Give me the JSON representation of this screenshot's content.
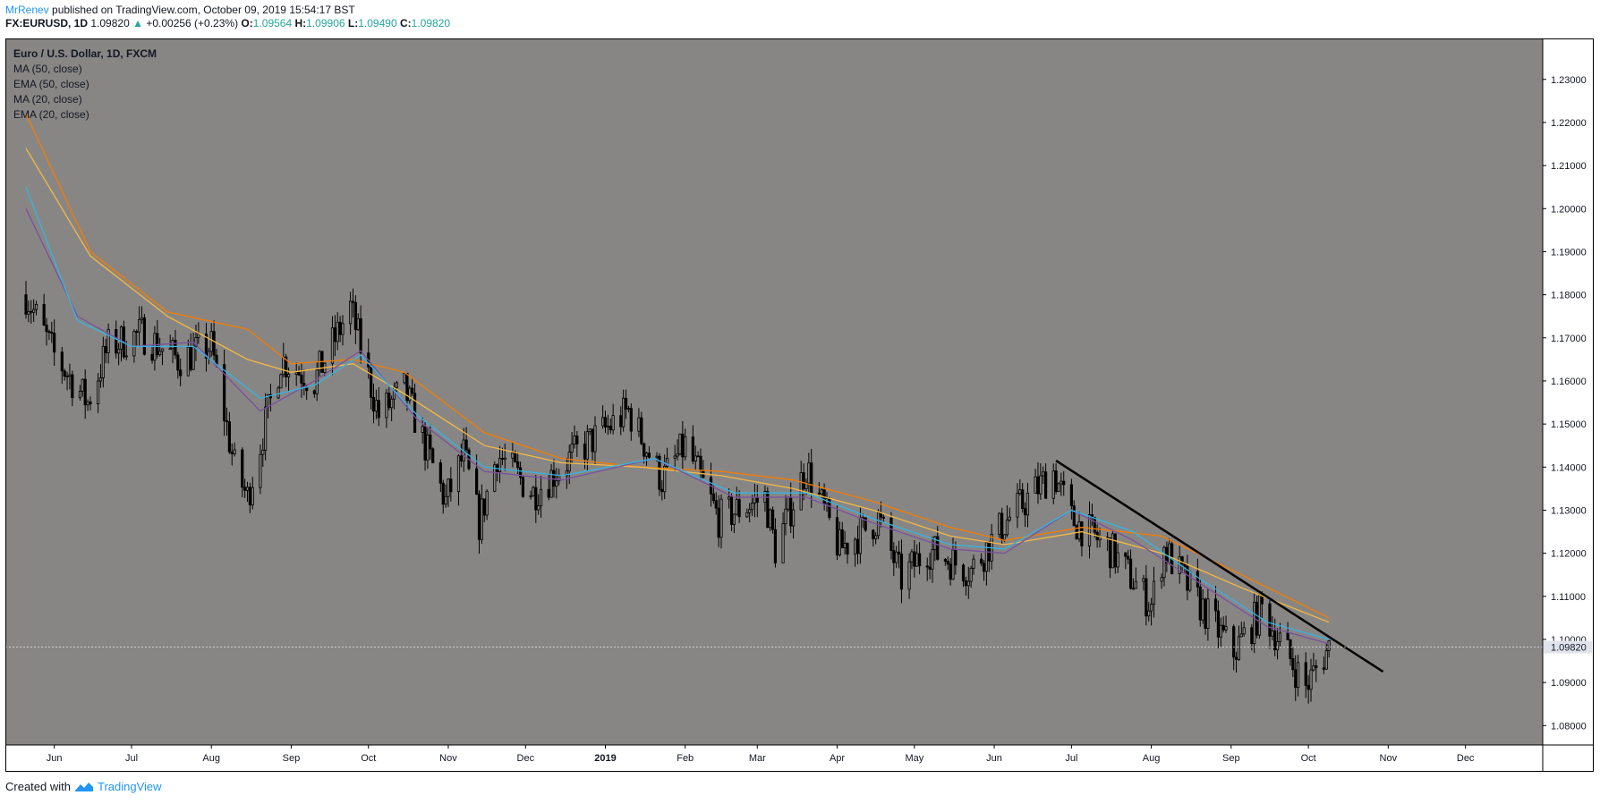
{
  "header": {
    "author": "MrRenev",
    "published": "published on TradingView.com, October 09, 2019 15:54:17 BST",
    "symbol": "FX:EURUSD, 1D",
    "last": "1.09820",
    "change": "+0.00256 (+0.23%)",
    "o_label": "O:",
    "o": "1.09564",
    "h_label": "H:",
    "h": "1.09906",
    "l_label": "L:",
    "l": "1.09490",
    "c_label": "C:",
    "c": "1.09820"
  },
  "legend": {
    "title": "Euro / U.S. Dollar, 1D, FXCM",
    "items": [
      "MA (50, close)",
      "EMA (50, close)",
      "MA (20, close)",
      "EMA (20, close)"
    ]
  },
  "footer": {
    "created_with": "Created with",
    "brand": "TradingView"
  },
  "colors": {
    "background": "#888684",
    "candle": "#000000",
    "ma50": "#f57c00",
    "ema50": "#f5b942",
    "ma20": "#7b4fa0",
    "ema20": "#33b5e5",
    "trendline": "#000000",
    "price_line": "#ffffff"
  },
  "chart_data": {
    "type": "candlestick",
    "timeframe": "1D",
    "x_ticks": [
      "Jun",
      "Jul",
      "Aug",
      "Sep",
      "Oct",
      "Nov",
      "Dec",
      "2019",
      "Feb",
      "Mar",
      "Apr",
      "May",
      "Jun",
      "Jul",
      "Aug",
      "Sep",
      "Oct",
      "Nov",
      "Dec"
    ],
    "y_ticks": [
      "1.23000",
      "1.22000",
      "1.21000",
      "1.20000",
      "1.19000",
      "1.18000",
      "1.17000",
      "1.16000",
      "1.15000",
      "1.14000",
      "1.13000",
      "1.12000",
      "1.11000",
      "1.10000",
      "1.09000",
      "1.08000"
    ],
    "ylim": [
      1.0755,
      1.2395
    ],
    "last_price": 1.0982,
    "last_price_label": "1.09820",
    "close_path": [
      [
        "2018-05-21",
        1.18
      ],
      [
        "2018-06-01",
        1.166
      ],
      [
        "2018-06-14",
        1.155
      ],
      [
        "2018-06-22",
        1.168
      ],
      [
        "2018-07-05",
        1.171
      ],
      [
        "2018-07-19",
        1.165
      ],
      [
        "2018-08-01",
        1.168
      ],
      [
        "2018-08-10",
        1.14
      ],
      [
        "2018-08-15",
        1.133
      ],
      [
        "2018-08-28",
        1.165
      ],
      [
        "2018-09-10",
        1.16
      ],
      [
        "2018-09-24",
        1.177
      ],
      [
        "2018-10-05",
        1.152
      ],
      [
        "2018-10-15",
        1.158
      ],
      [
        "2018-10-31",
        1.132
      ],
      [
        "2018-11-07",
        1.143
      ],
      [
        "2018-11-13",
        1.127
      ],
      [
        "2018-11-20",
        1.143
      ],
      [
        "2018-12-04",
        1.134
      ],
      [
        "2018-12-20",
        1.143
      ],
      [
        "2019-01-10",
        1.153
      ],
      [
        "2019-01-23",
        1.137
      ],
      [
        "2019-02-01",
        1.145
      ],
      [
        "2019-02-14",
        1.128
      ],
      [
        "2019-03-04",
        1.133
      ],
      [
        "2019-03-08",
        1.121
      ],
      [
        "2019-03-20",
        1.14
      ],
      [
        "2019-04-02",
        1.121
      ],
      [
        "2019-04-17",
        1.128
      ],
      [
        "2019-04-26",
        1.114
      ],
      [
        "2019-05-06",
        1.121
      ],
      [
        "2019-05-23",
        1.116
      ],
      [
        "2019-06-05",
        1.127
      ],
      [
        "2019-06-24",
        1.139
      ],
      [
        "2019-07-01",
        1.128
      ],
      [
        "2019-07-16",
        1.121
      ],
      [
        "2019-08-01",
        1.108
      ],
      [
        "2019-08-06",
        1.121
      ],
      [
        "2019-08-20",
        1.108
      ],
      [
        "2019-09-02",
        1.097
      ],
      [
        "2019-09-13",
        1.107
      ],
      [
        "2019-09-30",
        1.089
      ],
      [
        "2019-10-09",
        1.0982
      ]
    ],
    "ma50_path": [
      [
        "2018-05-21",
        1.222
      ],
      [
        "2018-06-15",
        1.19
      ],
      [
        "2018-07-15",
        1.176
      ],
      [
        "2018-08-15",
        1.172
      ],
      [
        "2018-09-01",
        1.164
      ],
      [
        "2018-09-25",
        1.165
      ],
      [
        "2018-10-15",
        1.162
      ],
      [
        "2018-11-15",
        1.148
      ],
      [
        "2018-12-15",
        1.142
      ],
      [
        "2019-01-15",
        1.14
      ],
      [
        "2019-02-15",
        1.139
      ],
      [
        "2019-03-15",
        1.137
      ],
      [
        "2019-04-15",
        1.132
      ],
      [
        "2019-05-15",
        1.126
      ],
      [
        "2019-06-05",
        1.123
      ],
      [
        "2019-07-05",
        1.126
      ],
      [
        "2019-08-05",
        1.124
      ],
      [
        "2019-09-05",
        1.115
      ],
      [
        "2019-10-09",
        1.105
      ]
    ],
    "ema50_path": [
      [
        "2018-05-21",
        1.214
      ],
      [
        "2018-06-15",
        1.189
      ],
      [
        "2018-07-15",
        1.175
      ],
      [
        "2018-08-15",
        1.165
      ],
      [
        "2018-09-01",
        1.162
      ],
      [
        "2018-09-25",
        1.164
      ],
      [
        "2018-10-15",
        1.157
      ],
      [
        "2018-11-15",
        1.145
      ],
      [
        "2018-12-15",
        1.141
      ],
      [
        "2019-01-15",
        1.14
      ],
      [
        "2019-02-15",
        1.138
      ],
      [
        "2019-03-15",
        1.135
      ],
      [
        "2019-04-15",
        1.13
      ],
      [
        "2019-05-15",
        1.124
      ],
      [
        "2019-06-05",
        1.122
      ],
      [
        "2019-07-05",
        1.125
      ],
      [
        "2019-08-05",
        1.12
      ],
      [
        "2019-09-05",
        1.112
      ],
      [
        "2019-10-09",
        1.104
      ]
    ],
    "ma20_path": [
      [
        "2018-05-21",
        1.2
      ],
      [
        "2018-06-10",
        1.175
      ],
      [
        "2018-07-01",
        1.168
      ],
      [
        "2018-07-25",
        1.169
      ],
      [
        "2018-08-20",
        1.153
      ],
      [
        "2018-09-10",
        1.16
      ],
      [
        "2018-09-28",
        1.167
      ],
      [
        "2018-10-20",
        1.151
      ],
      [
        "2018-11-15",
        1.139
      ],
      [
        "2018-12-15",
        1.137
      ],
      [
        "2019-01-20",
        1.142
      ],
      [
        "2019-02-20",
        1.133
      ],
      [
        "2019-03-20",
        1.133
      ],
      [
        "2019-04-15",
        1.127
      ],
      [
        "2019-05-15",
        1.121
      ],
      [
        "2019-06-05",
        1.12
      ],
      [
        "2019-07-01",
        1.13
      ],
      [
        "2019-07-25",
        1.123
      ],
      [
        "2019-08-20",
        1.113
      ],
      [
        "2019-09-15",
        1.103
      ],
      [
        "2019-10-09",
        1.099
      ]
    ],
    "ema20_path": [
      [
        "2018-05-21",
        1.205
      ],
      [
        "2018-06-10",
        1.174
      ],
      [
        "2018-07-01",
        1.168
      ],
      [
        "2018-07-25",
        1.168
      ],
      [
        "2018-08-20",
        1.156
      ],
      [
        "2018-09-10",
        1.159
      ],
      [
        "2018-09-28",
        1.166
      ],
      [
        "2018-10-20",
        1.152
      ],
      [
        "2018-11-15",
        1.14
      ],
      [
        "2018-12-15",
        1.138
      ],
      [
        "2019-01-20",
        1.142
      ],
      [
        "2019-02-20",
        1.134
      ],
      [
        "2019-03-20",
        1.134
      ],
      [
        "2019-04-15",
        1.128
      ],
      [
        "2019-05-15",
        1.122
      ],
      [
        "2019-06-05",
        1.121
      ],
      [
        "2019-07-01",
        1.13
      ],
      [
        "2019-07-25",
        1.125
      ],
      [
        "2019-08-20",
        1.114
      ],
      [
        "2019-09-15",
        1.104
      ],
      [
        "2019-10-09",
        1.1
      ]
    ],
    "trendline": [
      [
        "2019-06-25",
        1.1415
      ],
      [
        "2019-10-30",
        1.0925
      ]
    ],
    "grid": false
  }
}
